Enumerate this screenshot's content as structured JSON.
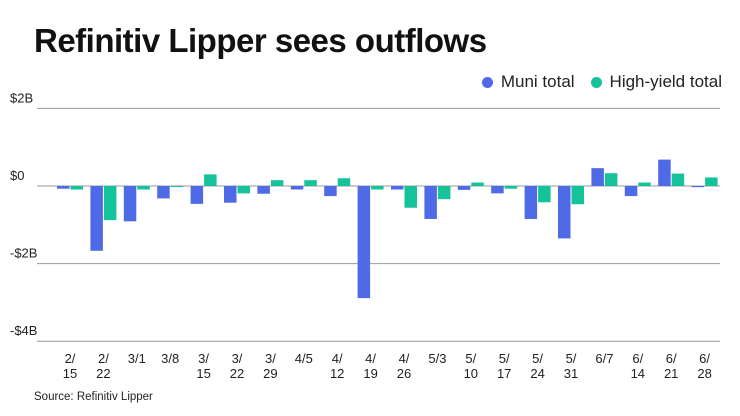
{
  "chart_data": {
    "type": "bar",
    "title": "Refinitiv Lipper sees outflows",
    "source": "Source: Refinitiv Lipper",
    "categories": [
      [
        "2/",
        "15"
      ],
      [
        "2/",
        "22"
      ],
      [
        "3/1"
      ],
      [
        "3/8"
      ],
      [
        "3/",
        "15"
      ],
      [
        "3/",
        "22"
      ],
      [
        "3/",
        "29"
      ],
      [
        "4/5"
      ],
      [
        "4/",
        "12"
      ],
      [
        "4/",
        "19"
      ],
      [
        "4/",
        "26"
      ],
      [
        "5/3"
      ],
      [
        "5/",
        "10"
      ],
      [
        "5/",
        "17"
      ],
      [
        "5/",
        "24"
      ],
      [
        "5/",
        "31"
      ],
      [
        "6/7"
      ],
      [
        "6/",
        "14"
      ],
      [
        "6/",
        "21"
      ],
      [
        "6/",
        "28"
      ]
    ],
    "series": [
      {
        "name": "Muni total",
        "color": "#4f6ae6",
        "values": [
          -0.07,
          -1.67,
          -0.91,
          -0.32,
          -0.46,
          -0.43,
          -0.2,
          -0.09,
          -0.26,
          -2.89,
          -0.09,
          -0.85,
          -0.1,
          -0.19,
          -0.85,
          -1.35,
          0.46,
          -0.26,
          0.68,
          -0.03
        ]
      },
      {
        "name": "High-yield total",
        "color": "#14c39a",
        "values": [
          -0.09,
          -0.88,
          -0.09,
          -0.01,
          0.3,
          -0.19,
          0.15,
          0.15,
          0.2,
          -0.09,
          -0.56,
          -0.34,
          0.09,
          -0.07,
          -0.42,
          -0.47,
          0.33,
          0.09,
          0.32,
          0.22
        ]
      }
    ],
    "yticks": [
      {
        "value": 2,
        "label": "$2B"
      },
      {
        "value": 0,
        "label": "$0"
      },
      {
        "value": -2,
        "label": "-$2B"
      },
      {
        "value": -4,
        "label": "-$4B"
      }
    ],
    "ylim": [
      -4,
      2
    ],
    "ylabel": "",
    "xlabel": "",
    "grid": true,
    "legend": "top-right"
  }
}
